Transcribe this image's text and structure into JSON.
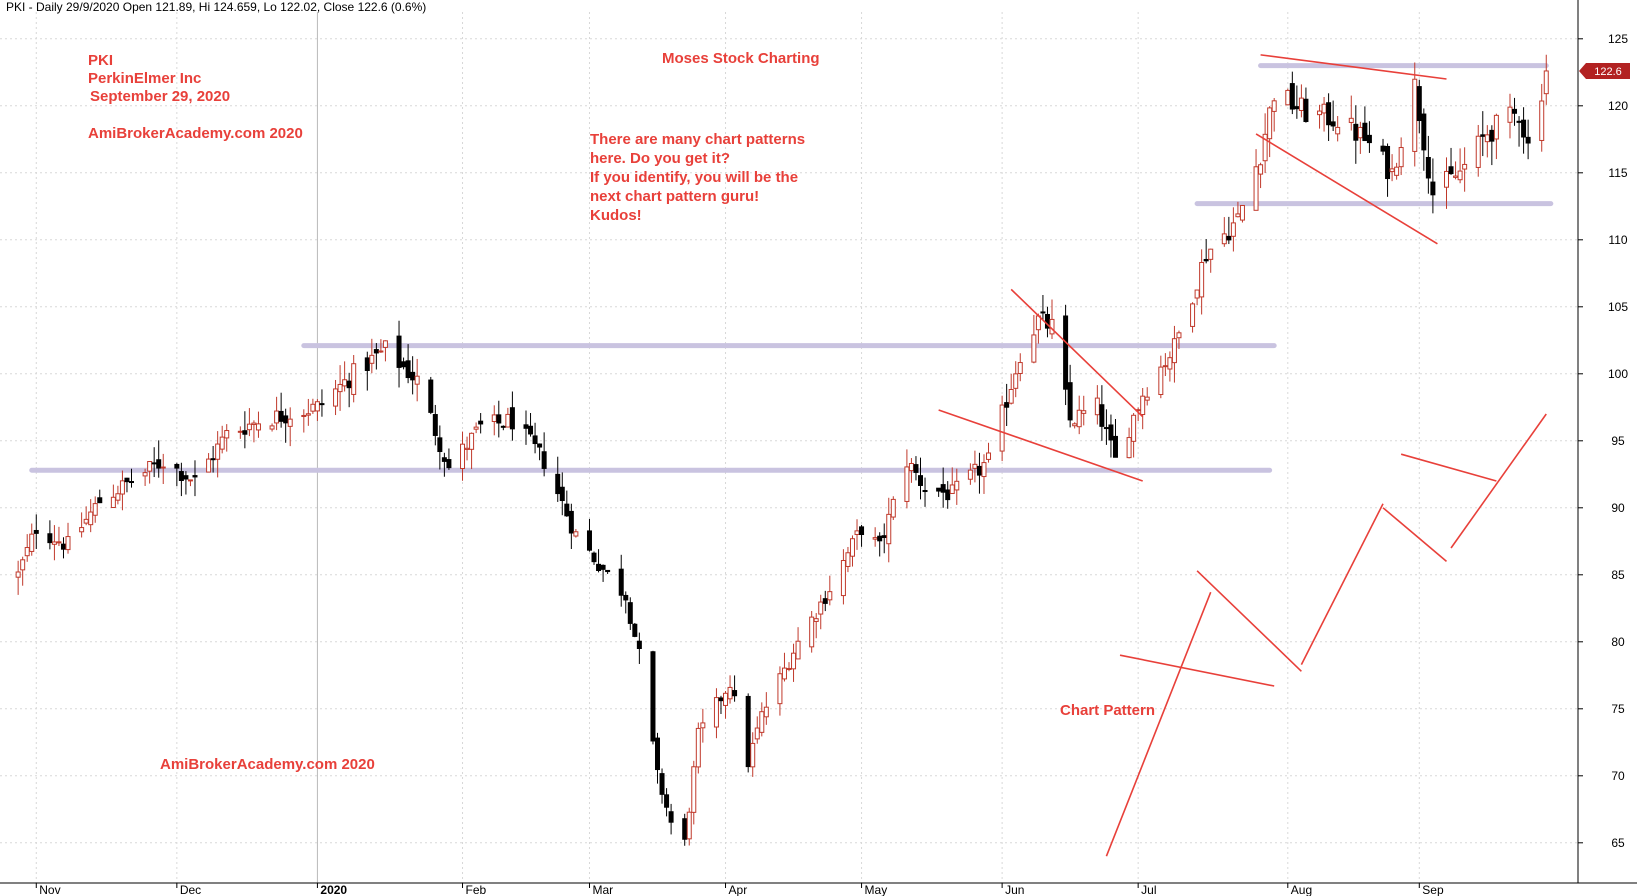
{
  "header": "PKI - Daily 29/9/2020 Open 121.89, Hi 124.659, Lo 122.02, Close 122.6 (0.6%)",
  "annotations": {
    "ticker": "PKI",
    "company": "PerkinElmer Inc",
    "date": "September 29, 2020",
    "watermark_top": "AmiBrokerAcademy.com 2020",
    "title": "Moses Stock Charting",
    "question_lines": [
      "There are many chart patterns",
      "here. Do you get it?",
      "If you identify, you will be the",
      "next chart pattern guru!",
      "Kudos!"
    ],
    "pattern_label": "Chart Pattern",
    "watermark_bottom": "AmiBrokerAcademy.com  2020"
  },
  "colors": {
    "bull": "#c0392b",
    "bear": "#000000",
    "trendline": "#e8403a",
    "support_band": "#c9c3e0",
    "grid": "#d8d8d8",
    "badge": "#b22222"
  },
  "chart_data": {
    "type": "candlestick",
    "title": "PKI - Daily 29/9/2020",
    "ylim": [
      62,
      127
    ],
    "y_ticks": [
      65,
      70,
      75,
      80,
      85,
      90,
      95,
      100,
      105,
      110,
      115,
      120,
      125
    ],
    "x_ticks": [
      "Nov",
      "Dec",
      "2020",
      "Feb",
      "Mar",
      "Apr",
      "May",
      "Jun",
      "Jul",
      "Aug",
      "Sep"
    ],
    "last_close": 122.6,
    "last_close_label": "122.6",
    "grid": true,
    "ohlc_anchor": [
      [
        "2019-10-28",
        85.0
      ],
      [
        "2019-11-01",
        88.5
      ],
      [
        "2019-11-08",
        87.2
      ],
      [
        "2019-11-15",
        90.5
      ],
      [
        "2019-11-29",
        93.5
      ],
      [
        "2019-12-06",
        92.0
      ],
      [
        "2019-12-13",
        95.5
      ],
      [
        "2019-12-20",
        96.5
      ],
      [
        "2020-01-02",
        97.5
      ],
      [
        "2020-01-10",
        100.0
      ],
      [
        "2020-01-17",
        101.8
      ],
      [
        "2020-01-24",
        99.5
      ],
      [
        "2020-01-31",
        93.0
      ],
      [
        "2020-02-07",
        96.0
      ],
      [
        "2020-02-14",
        96.5
      ],
      [
        "2020-02-21",
        93.5
      ],
      [
        "2020-02-28",
        88.0
      ],
      [
        "2020-03-06",
        85.0
      ],
      [
        "2020-03-10",
        83.5
      ],
      [
        "2020-03-13",
        79.0
      ],
      [
        "2020-03-17",
        70.0
      ],
      [
        "2020-03-20",
        66.5
      ],
      [
        "2020-03-23",
        65.0
      ],
      [
        "2020-03-26",
        73.0
      ],
      [
        "2020-04-02",
        77.0
      ],
      [
        "2020-04-06",
        71.0
      ],
      [
        "2020-04-09",
        74.5
      ],
      [
        "2020-04-17",
        80.0
      ],
      [
        "2020-04-24",
        84.0
      ],
      [
        "2020-05-01",
        88.5
      ],
      [
        "2020-05-05",
        87.0
      ],
      [
        "2020-05-11",
        93.5
      ],
      [
        "2020-05-15",
        91.5
      ],
      [
        "2020-05-21",
        91.0
      ],
      [
        "2020-05-29",
        93.5
      ],
      [
        "2020-06-05",
        101.5
      ],
      [
        "2020-06-09",
        104.0
      ],
      [
        "2020-06-12",
        103.5
      ],
      [
        "2020-06-16",
        96.5
      ],
      [
        "2020-06-22",
        97.5
      ],
      [
        "2020-06-26",
        93.5
      ],
      [
        "2020-07-02",
        98.5
      ],
      [
        "2020-07-09",
        102.0
      ],
      [
        "2020-07-16",
        109.0
      ],
      [
        "2020-07-23",
        111.5
      ],
      [
        "2020-07-28",
        116.5
      ],
      [
        "2020-07-31",
        121.0
      ],
      [
        "2020-08-07",
        119.5
      ],
      [
        "2020-08-14",
        119.0
      ],
      [
        "2020-08-20",
        117.5
      ],
      [
        "2020-08-26",
        115.0
      ],
      [
        "2020-08-31",
        121.5
      ],
      [
        "2020-09-04",
        113.5
      ],
      [
        "2020-09-10",
        115.0
      ],
      [
        "2020-09-16",
        118.0
      ],
      [
        "2020-09-23",
        119.5
      ],
      [
        "2020-09-25",
        117.0
      ],
      [
        "2020-09-29",
        122.6
      ]
    ],
    "support_lines": [
      {
        "from": "2019-10-31",
        "to": "2020-07-30",
        "y": 92.8
      },
      {
        "from": "2019-12-30",
        "to": "2020-07-31",
        "y": 102.1
      },
      {
        "from": "2020-07-14",
        "to": "2020-09-30",
        "y": 112.7
      },
      {
        "from": "2020-07-28",
        "to": "2020-09-29",
        "y": 123.0
      }
    ],
    "trend_lines": [
      {
        "x1": "2020-05-18",
        "y1": 97.3,
        "x2": "2020-07-02",
        "y2": 92.0
      },
      {
        "x1": "2020-06-03",
        "y1": 106.3,
        "x2": "2020-07-02",
        "y2": 96.8
      },
      {
        "x1": "2020-07-27",
        "y1": 117.9,
        "x2": "2020-09-05",
        "y2": 109.7
      },
      {
        "x1": "2020-07-28",
        "y1": 123.8,
        "x2": "2020-09-07",
        "y2": 122.0
      },
      {
        "x1": "2020-06-24",
        "y1": 64.0,
        "x2": "2020-07-17",
        "y2": 83.7
      },
      {
        "x1": "2020-06-27",
        "y1": 79.0,
        "x2": "2020-07-31",
        "y2": 76.7
      },
      {
        "x1": "2020-07-14",
        "y1": 85.3,
        "x2": "2020-08-06",
        "y2": 77.8
      },
      {
        "x1": "2020-08-06",
        "y1": 78.3,
        "x2": "2020-08-24",
        "y2": 90.3
      },
      {
        "x1": "2020-08-24",
        "y1": 90.0,
        "x2": "2020-09-07",
        "y2": 86.0
      },
      {
        "x1": "2020-08-28",
        "y1": 94.0,
        "x2": "2020-09-18",
        "y2": 92.0
      },
      {
        "x1": "2020-09-08",
        "y1": 87.0,
        "x2": "2020-09-29",
        "y2": 97.0
      }
    ]
  }
}
